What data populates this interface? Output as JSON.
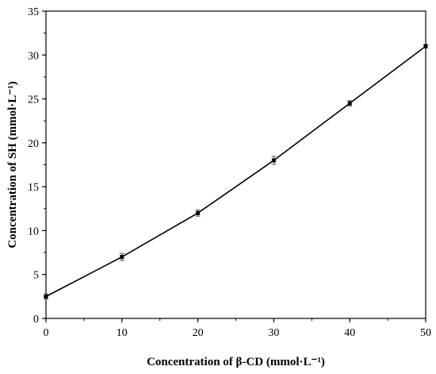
{
  "chart_data": {
    "type": "line",
    "xlabel": "Concentration of β-CD (mmol·L⁻¹)",
    "ylabel": "Concentration of SH (mmol·L⁻¹)",
    "xlim": [
      0,
      50
    ],
    "ylim": [
      0,
      35
    ],
    "xticks": [
      "0",
      "10",
      "20",
      "30",
      "40",
      "50"
    ],
    "yticks": [
      "0",
      "5",
      "10",
      "15",
      "20",
      "25",
      "30",
      "35"
    ],
    "grid": false,
    "legend": "none",
    "series": [
      {
        "x": [
          0,
          10,
          20,
          30,
          40,
          50
        ],
        "y": [
          2.5,
          7.0,
          12.0,
          18.0,
          24.5,
          31.0
        ],
        "error": [
          0.3,
          0.4,
          0.35,
          0.45,
          0.3,
          0.2
        ],
        "color": "#000000"
      }
    ]
  }
}
